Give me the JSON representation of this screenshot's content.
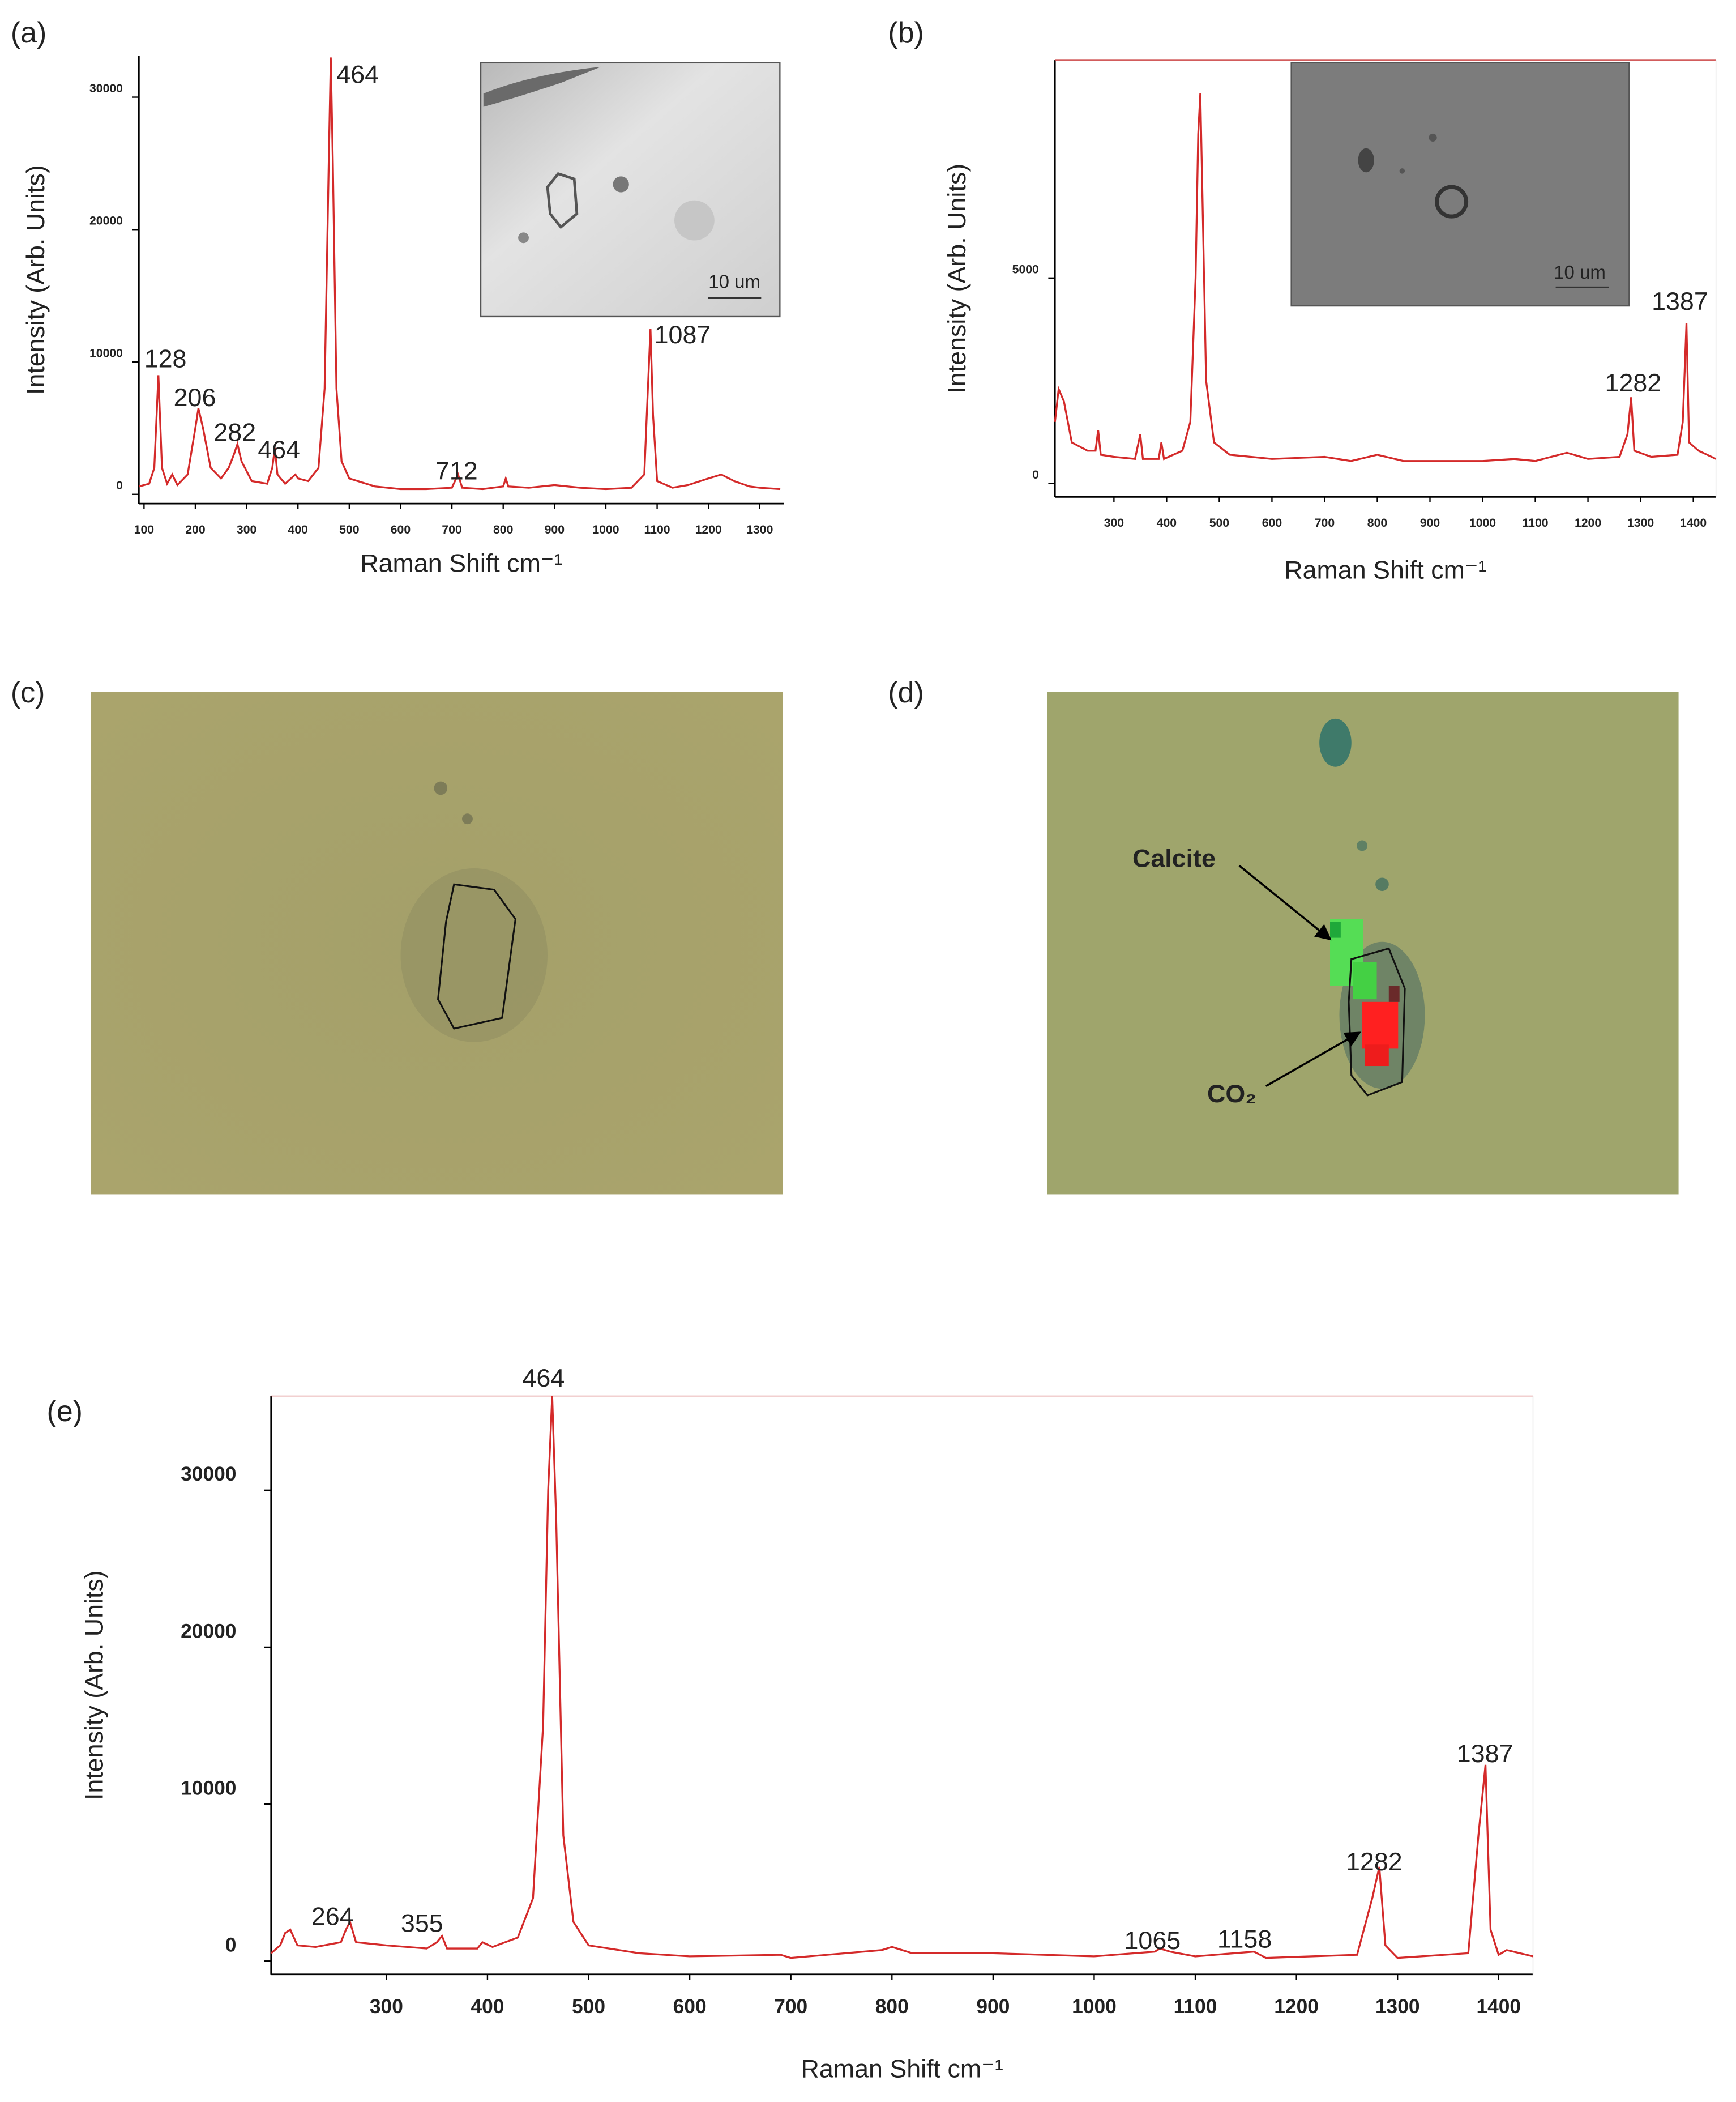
{
  "panel_labels": [
    "(a)",
    "(b)",
    "(c)",
    "(d)",
    "(e)"
  ],
  "insets": [
    {
      "scale_label": "10 um"
    },
    {
      "scale_label": "10 um"
    }
  ],
  "map_labels": {
    "calcite": "Calcite",
    "co2": "CO₂"
  },
  "chart_data": [
    {
      "type": "line",
      "color": "#d42a2a",
      "xlabel": "Raman Shift cm⁻¹",
      "ylabel": "Intensity (Arb. Units)",
      "xlim": [
        90,
        1347
      ],
      "ylim": [
        -700,
        33100
      ],
      "xticks": [
        100,
        200,
        300,
        400,
        500,
        600,
        700,
        800,
        900,
        1000,
        1100,
        1200,
        1300
      ],
      "yticks": [
        0,
        10000,
        20000,
        30000
      ],
      "annotations": [
        "128",
        "206",
        "282",
        "464",
        "464",
        "712",
        "1087"
      ],
      "x": [
        90,
        110,
        120,
        128,
        135,
        145,
        155,
        165,
        185,
        200,
        206,
        215,
        230,
        250,
        265,
        275,
        282,
        290,
        310,
        340,
        350,
        355,
        360,
        375,
        395,
        400,
        420,
        440,
        452,
        460,
        464,
        468,
        475,
        485,
        500,
        550,
        600,
        650,
        700,
        712,
        720,
        760,
        800,
        805,
        810,
        850,
        900,
        950,
        1000,
        1050,
        1075,
        1082,
        1087,
        1092,
        1100,
        1130,
        1160,
        1200,
        1225,
        1250,
        1280,
        1300,
        1340
      ],
      "values": [
        600,
        800,
        2000,
        9000,
        2000,
        800,
        1500,
        700,
        1500,
        5000,
        6500,
        5000,
        2000,
        1200,
        2000,
        3000,
        3800,
        2500,
        1000,
        800,
        2000,
        3500,
        1500,
        800,
        1500,
        1200,
        1000,
        2000,
        8000,
        25000,
        33000,
        25000,
        8000,
        2500,
        1200,
        600,
        400,
        400,
        500,
        1500,
        500,
        400,
        600,
        1200,
        600,
        500,
        700,
        500,
        400,
        500,
        1500,
        8000,
        12500,
        6000,
        1000,
        500,
        700,
        1200,
        1500,
        1000,
        600,
        500,
        400
      ]
    },
    {
      "type": "line",
      "color": "#d42a2a",
      "xlabel": "Raman Shift cm⁻¹",
      "ylabel": "Intensity (Arb. Units)",
      "xlim": [
        188,
        1443
      ],
      "ylim": [
        -325,
        10300
      ],
      "xticks": [
        300,
        400,
        500,
        600,
        700,
        800,
        900,
        1000,
        1100,
        1200,
        1300,
        1400
      ],
      "yticks": [
        0,
        5000
      ],
      "annotations": [
        "1282",
        "1387"
      ],
      "x": [
        188,
        195,
        205,
        220,
        250,
        265,
        270,
        275,
        300,
        340,
        350,
        355,
        385,
        390,
        395,
        430,
        445,
        455,
        460,
        464,
        468,
        475,
        490,
        520,
        600,
        700,
        750,
        800,
        850,
        900,
        1000,
        1060,
        1100,
        1160,
        1200,
        1260,
        1275,
        1282,
        1288,
        1320,
        1370,
        1380,
        1387,
        1392,
        1410,
        1443
      ],
      "values": [
        1500,
        2300,
        2000,
        1000,
        800,
        800,
        1300,
        700,
        650,
        600,
        1200,
        600,
        600,
        1000,
        600,
        800,
        1500,
        5000,
        8500,
        9500,
        7000,
        2500,
        1000,
        700,
        600,
        650,
        550,
        700,
        550,
        550,
        550,
        600,
        550,
        750,
        600,
        650,
        1200,
        2100,
        800,
        650,
        700,
        1500,
        3900,
        1000,
        800,
        600
      ]
    },
    {
      "type": "line",
      "color": "#d42a2a",
      "xlabel": "Raman Shift cm⁻¹",
      "ylabel": "Intensity (Arb. Units)",
      "xlim": [
        186,
        1434
      ],
      "ylim": [
        -850,
        36000
      ],
      "xticks": [
        300,
        400,
        500,
        600,
        700,
        800,
        900,
        1000,
        1100,
        1200,
        1300,
        1400
      ],
      "yticks": [
        0,
        10000,
        20000,
        30000
      ],
      "annotations": [
        "464",
        "264",
        "355",
        "1065",
        "1158",
        "1282",
        "1387"
      ],
      "x": [
        186,
        195,
        200,
        205,
        212,
        230,
        255,
        260,
        264,
        270,
        300,
        340,
        350,
        355,
        360,
        390,
        395,
        405,
        430,
        445,
        455,
        460,
        464,
        468,
        475,
        485,
        500,
        550,
        600,
        690,
        700,
        790,
        800,
        820,
        900,
        1000,
        1060,
        1065,
        1075,
        1100,
        1158,
        1170,
        1260,
        1275,
        1282,
        1288,
        1300,
        1370,
        1380,
        1387,
        1392,
        1400,
        1408,
        1434
      ],
      "values": [
        500,
        1000,
        1800,
        2000,
        1000,
        900,
        1200,
        2000,
        2500,
        1200,
        1000,
        800,
        1200,
        1600,
        800,
        800,
        1200,
        900,
        1500,
        4000,
        15000,
        30000,
        36000,
        28000,
        8000,
        2500,
        1000,
        500,
        300,
        400,
        200,
        700,
        900,
        500,
        500,
        300,
        600,
        800,
        600,
        300,
        600,
        200,
        400,
        4000,
        6000,
        1000,
        200,
        500,
        8000,
        12500,
        2000,
        400,
        700,
        300
      ]
    }
  ]
}
